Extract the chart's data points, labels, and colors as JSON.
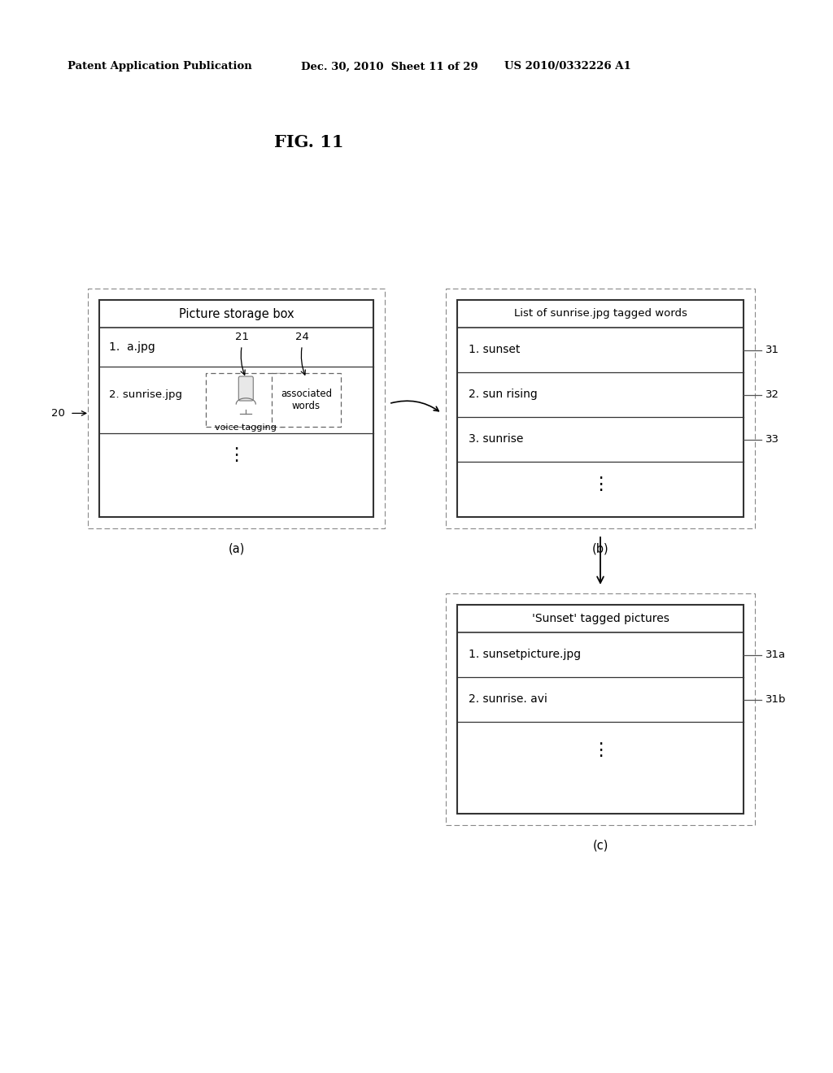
{
  "bg_color": "#ffffff",
  "header_left": "Patent Application Publication",
  "header_mid": "Dec. 30, 2010  Sheet 11 of 29",
  "header_right": "US 2010/0332226 A1",
  "fig_label": "FIG. 11",
  "box_a": {
    "title": "Picture storage box",
    "row1": "1.  a.jpg",
    "row2_left": "2. sunrise.jpg",
    "row2_mid_label": "voice tagging",
    "row2_right_label": "associated\nwords",
    "label_21": "21",
    "label_24": "24",
    "label_20": "20",
    "caption": "(a)"
  },
  "box_b": {
    "title": "List of sunrise.jpg tagged words",
    "row1": "1. sunset",
    "row2": "2. sun rising",
    "row3": "3. sunrise",
    "label_31": "31",
    "label_32": "32",
    "label_33": "33",
    "caption": "(b)"
  },
  "box_c": {
    "title": "'Sunset' tagged pictures",
    "row1": "1. sunsetpicture.jpg",
    "row2": "2. sunrise. avi",
    "label_31a": "31a",
    "label_31b": "31b",
    "caption": "(c)"
  }
}
